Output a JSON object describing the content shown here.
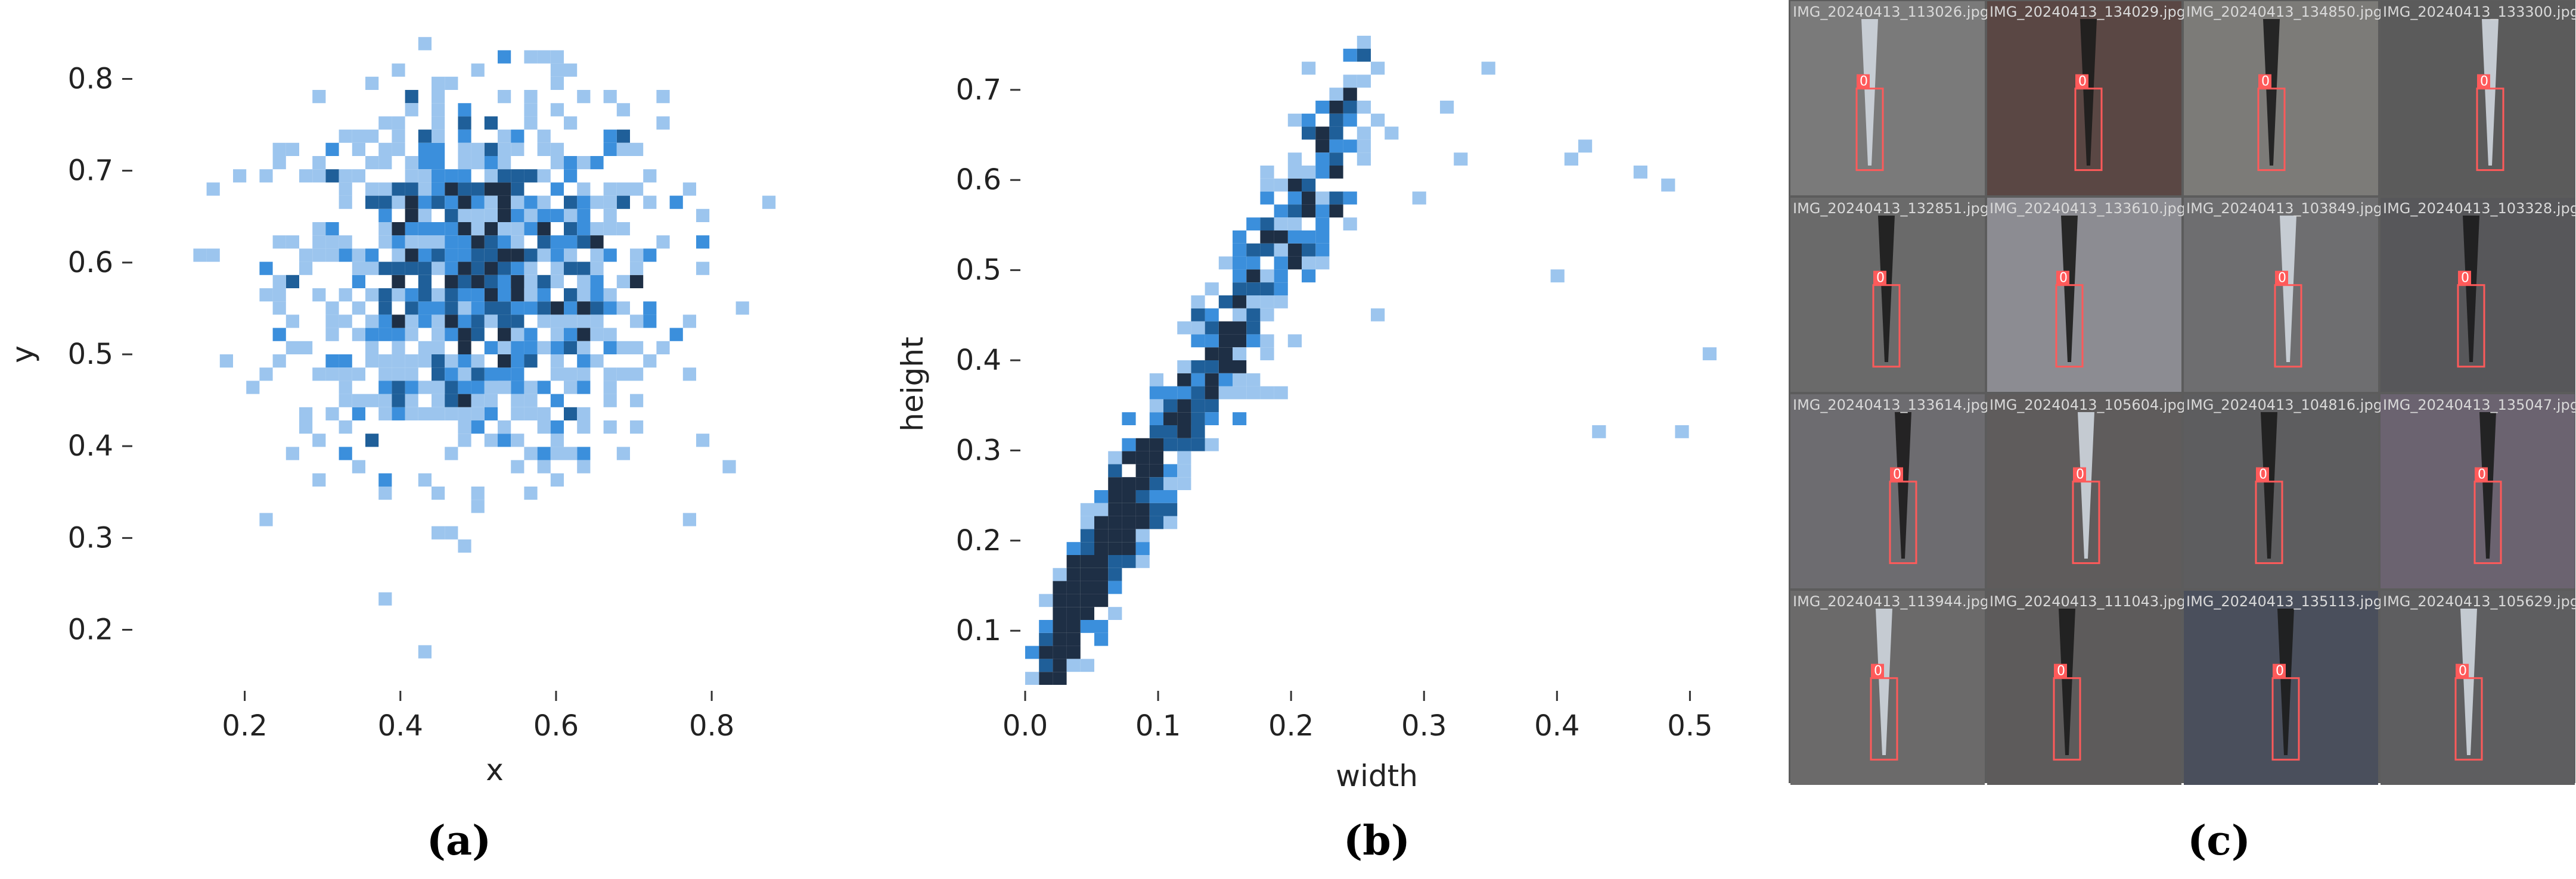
{
  "panel_labels": {
    "a": "(a)",
    "b": "(b)",
    "c": "(c)"
  },
  "colors": {
    "light": "#9cc5ee",
    "mid": "#3b8fdc",
    "dark": "#1f5f99",
    "darkest": "#1e2f45",
    "box": "#ff5a5a"
  },
  "chart_data": [
    {
      "type": "heatmap",
      "title": "",
      "xlabel": "x",
      "ylabel": "y",
      "xlim": [
        0.1,
        0.95
      ],
      "ylim": [
        0.14,
        0.86
      ],
      "xticks": [
        "0.2",
        "0.4",
        "0.6",
        "0.8"
      ],
      "xtick_values": [
        0.2,
        0.4,
        0.6,
        0.8
      ],
      "yticks": [
        "0.2",
        "0.3",
        "0.4",
        "0.5",
        "0.6",
        "0.7",
        "0.8"
      ],
      "ytick_values": [
        0.2,
        0.3,
        0.4,
        0.5,
        0.6,
        0.7,
        0.8
      ],
      "bins": {
        "x": 50,
        "y": 50
      },
      "distribution": {
        "x_center": 0.5,
        "y_center": 0.6,
        "x_spread": 0.16,
        "y_spread": 0.12
      },
      "grid": false
    },
    {
      "type": "heatmap",
      "title": "",
      "xlabel": "width",
      "ylabel": "height",
      "xlim": [
        0.0,
        0.52
      ],
      "ylim": [
        0.04,
        0.76
      ],
      "xticks": [
        "0.0",
        "0.1",
        "0.2",
        "0.3",
        "0.4",
        "0.5"
      ],
      "xtick_values": [
        0.0,
        0.1,
        0.2,
        0.3,
        0.4,
        0.5
      ],
      "yticks": [
        "0.1",
        "0.2",
        "0.3",
        "0.4",
        "0.5",
        "0.6",
        "0.7"
      ],
      "ytick_values": [
        0.1,
        0.2,
        0.3,
        0.4,
        0.5,
        0.6,
        0.7
      ],
      "bins": {
        "x": 50,
        "y": 50
      },
      "relation": "height ≈ 2.5 × width (strong positive correlation)",
      "grid": false
    }
  ],
  "thumbnails": [
    {
      "name": "IMG_20240413_113026.jpg",
      "label": "0"
    },
    {
      "name": "IMG_20240413_134029.jpg",
      "label": "0"
    },
    {
      "name": "IMG_20240413_134850.jpg",
      "label": "0"
    },
    {
      "name": "IMG_20240413_133300.jpg",
      "label": "0"
    },
    {
      "name": "IMG_20240413_132851.jpg",
      "label": "0"
    },
    {
      "name": "IMG_20240413_133610.jpg",
      "label": "0"
    },
    {
      "name": "IMG_20240413_103849.jpg",
      "label": "0"
    },
    {
      "name": "IMG_20240413_103328.jpg",
      "label": "0"
    },
    {
      "name": "IMG_20240413_133614.jpg",
      "label": "0"
    },
    {
      "name": "IMG_20240413_105604.jpg",
      "label": "0"
    },
    {
      "name": "IMG_20240413_104816.jpg",
      "label": "0"
    },
    {
      "name": "IMG_20240413_135047.jpg",
      "label": "0"
    },
    {
      "name": "IMG_20240413_113944.jpg",
      "label": "0"
    },
    {
      "name": "IMG_20240413_111043.jpg",
      "label": "0"
    },
    {
      "name": "IMG_20240413_135113.jpg",
      "label": "0"
    },
    {
      "name": "IMG_20240413_105629.jpg",
      "label": "0"
    }
  ]
}
